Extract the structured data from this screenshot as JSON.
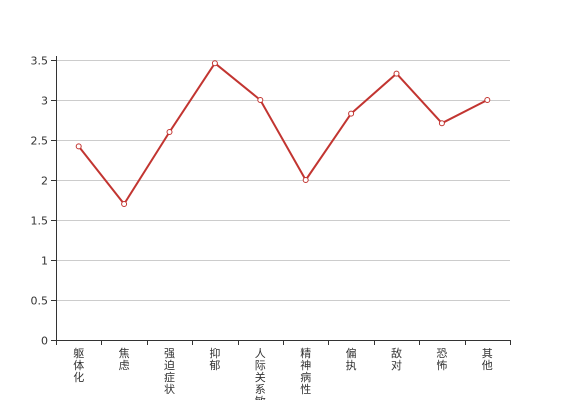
{
  "chart_data": {
    "type": "line",
    "categories": [
      "躯体化",
      "焦虑",
      "强迫症状",
      "抑郁",
      "人际关系敏感",
      "精神病性",
      "偏执",
      "敌对",
      "恐怖",
      "其他"
    ],
    "series": [
      {
        "values": [
          2.42,
          1.7,
          2.6,
          3.46,
          3.0,
          2.0,
          2.83,
          3.33,
          2.71,
          3.0
        ]
      }
    ],
    "yticks": [
      "0",
      "0.5",
      "1",
      "1.5",
      "2",
      "2.5",
      "3",
      "3.5"
    ],
    "ylim": [
      0,
      3.5
    ],
    "grid": true,
    "colors": {
      "line": "#c23531",
      "grid": "#cccccc",
      "axis": "#333333",
      "text": "#333333"
    }
  }
}
